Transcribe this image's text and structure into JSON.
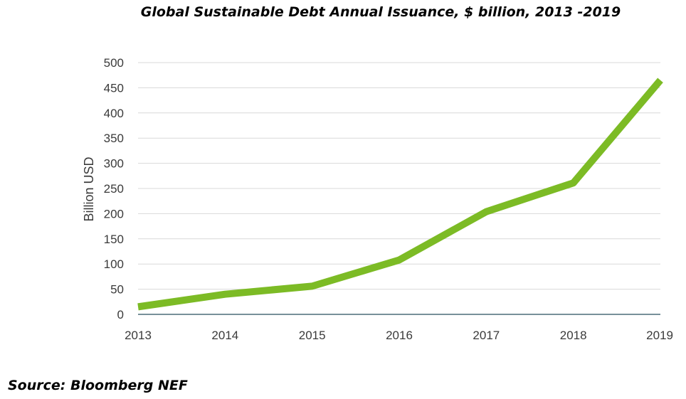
{
  "chart_data": {
    "type": "line",
    "title": "Global Sustainable Debt Annual Issuance, $ billion, 2013 -2019",
    "xlabel": "",
    "ylabel": "Billion USD",
    "x": [
      "2013",
      "2014",
      "2015",
      "2016",
      "2017",
      "2018",
      "2019"
    ],
    "series": [
      {
        "values": [
          15,
          40,
          56,
          108,
          204,
          261,
          465
        ]
      }
    ],
    "ylim": [
      0,
      500
    ],
    "yticks": [
      "0",
      "50",
      "100",
      "150",
      "200",
      "250",
      "300",
      "350",
      "400",
      "450",
      "500"
    ],
    "grid": true,
    "legend": "none",
    "line_color": "#7cbb25",
    "grid_color": "#d9d9d9",
    "baseline_color": "#4a6b78"
  },
  "source": "Source: Bloomberg NEF"
}
